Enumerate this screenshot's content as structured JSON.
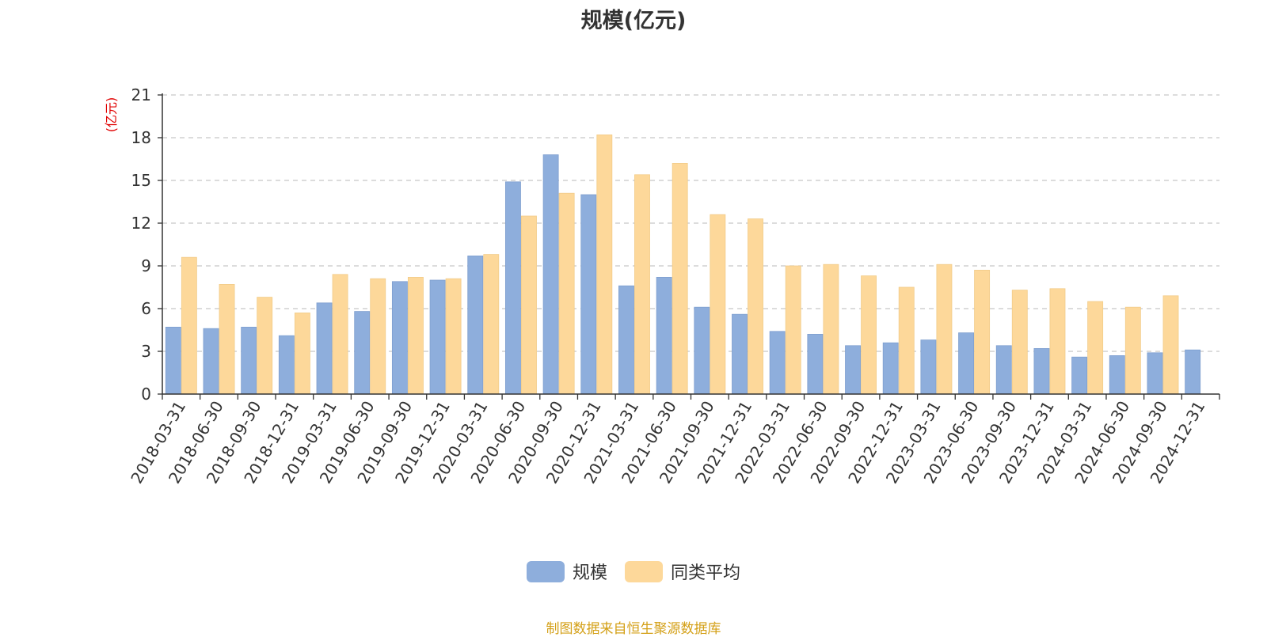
{
  "chart_data": {
    "type": "bar",
    "title": "规模(亿元)",
    "ylabel": "(亿元)",
    "ylim": [
      0,
      21
    ],
    "yticks": [
      0,
      3,
      6,
      9,
      12,
      15,
      18,
      21
    ],
    "grid": true,
    "legend_position": "bottom",
    "categories": [
      "2018-03-31",
      "2018-06-30",
      "2018-09-30",
      "2018-12-31",
      "2019-03-31",
      "2019-06-30",
      "2019-09-30",
      "2019-12-31",
      "2020-03-31",
      "2020-06-30",
      "2020-09-30",
      "2020-12-31",
      "2021-03-31",
      "2021-06-30",
      "2021-09-30",
      "2021-12-31",
      "2022-03-31",
      "2022-06-30",
      "2022-09-30",
      "2022-12-31",
      "2023-03-31",
      "2023-06-30",
      "2023-09-30",
      "2023-12-31",
      "2024-03-31",
      "2024-06-30",
      "2024-09-30",
      "2024-12-31"
    ],
    "series": [
      {
        "name": "规模",
        "color": "#8eaedc",
        "values": [
          4.7,
          4.6,
          4.7,
          4.1,
          6.4,
          5.8,
          7.9,
          8.0,
          9.7,
          14.9,
          16.8,
          14.0,
          7.6,
          8.2,
          6.1,
          5.6,
          4.4,
          4.2,
          3.4,
          3.6,
          3.8,
          4.3,
          3.4,
          3.2,
          2.6,
          2.7,
          2.9,
          3.1
        ]
      },
      {
        "name": "同类平均",
        "color": "#fdd89a",
        "values": [
          9.6,
          7.7,
          6.8,
          5.7,
          8.4,
          8.1,
          8.2,
          8.1,
          9.8,
          12.5,
          14.1,
          18.2,
          15.4,
          16.2,
          12.6,
          12.3,
          9.0,
          9.1,
          8.3,
          7.5,
          9.1,
          8.7,
          7.3,
          7.4,
          6.5,
          6.1,
          6.9,
          null
        ]
      }
    ]
  },
  "source_text": "制图数据来自恒生聚源数据库"
}
